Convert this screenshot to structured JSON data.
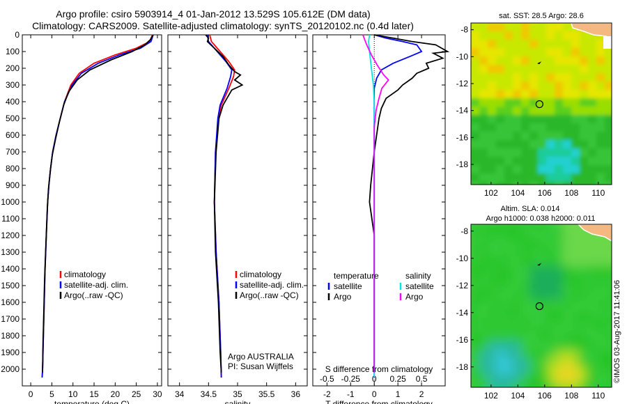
{
  "title_line1": "Argo profile: csiro 5903914_4 01-Jan-2012 13.529S 105.612E (DM data)",
  "title_line2": "Climatology: CARS2009. Satellite-adjusted climatology: synTS_20120102.nc (0.4d later)",
  "stamp": "©IMOS 03-Aug-2017 11:41:06",
  "colors": {
    "climatology": "#ff0000",
    "satellite": "#0000ff",
    "argo": "#000000",
    "sal_satellite": "#00e5e5",
    "sal_argo": "#ff00ff"
  },
  "chart_data": [
    {
      "type": "line",
      "name": "temperature",
      "xlabel": "temperature (deg C)",
      "xlim": [
        -2,
        31
      ],
      "ylim": [
        2100,
        0
      ],
      "xticks": [
        0,
        5,
        10,
        15,
        20,
        25,
        30
      ],
      "yticks": [
        0,
        100,
        200,
        300,
        400,
        500,
        600,
        700,
        800,
        900,
        1000,
        1100,
        1200,
        1300,
        1400,
        1500,
        1600,
        1700,
        1800,
        1900,
        2000
      ],
      "legend": [
        "climatology",
        "satellite-adj. clim.",
        "Argo(..raw -QC)"
      ],
      "series": [
        {
          "name": "climatology",
          "color": "#ff0000",
          "points": [
            [
              28.8,
              0
            ],
            [
              28.2,
              40
            ],
            [
              25,
              80
            ],
            [
              20,
              120
            ],
            [
              15,
              170
            ],
            [
              11.5,
              230
            ],
            [
              9.5,
              300
            ],
            [
              8,
              400
            ],
            [
              7,
              500
            ],
            [
              6,
              600
            ],
            [
              5.2,
              700
            ],
            [
              4.7,
              800
            ],
            [
              4.3,
              900
            ],
            [
              4,
              1000
            ],
            [
              3.7,
              1200
            ],
            [
              3.4,
              1400
            ],
            [
              3.2,
              1600
            ],
            [
              3,
              1800
            ],
            [
              2.8,
              2000
            ],
            [
              2.7,
              2050
            ]
          ]
        },
        {
          "name": "satellite-adj. clim.",
          "color": "#0000ff",
          "points": [
            [
              29,
              0
            ],
            [
              28.5,
              40
            ],
            [
              26,
              80
            ],
            [
              21,
              120
            ],
            [
              16,
              170
            ],
            [
              12,
              230
            ],
            [
              9.8,
              300
            ],
            [
              8,
              400
            ],
            [
              7,
              500
            ],
            [
              6,
              600
            ],
            [
              5.2,
              700
            ],
            [
              4.7,
              800
            ],
            [
              4.3,
              900
            ],
            [
              4,
              1000
            ],
            [
              3.7,
              1200
            ],
            [
              3.4,
              1400
            ],
            [
              3.2,
              1600
            ],
            [
              3,
              1800
            ],
            [
              2.8,
              2000
            ],
            [
              2.7,
              2050
            ]
          ]
        },
        {
          "name": "Argo(..raw -QC)",
          "color": "#000000",
          "points": [
            [
              29,
              0
            ],
            [
              28.3,
              30
            ],
            [
              27,
              60
            ],
            [
              24,
              100
            ],
            [
              19,
              150
            ],
            [
              14,
              210
            ],
            [
              11,
              270
            ],
            [
              9,
              340
            ],
            [
              7.8,
              420
            ],
            [
              6.8,
              520
            ],
            [
              5.9,
              620
            ],
            [
              5.1,
              720
            ],
            [
              4.6,
              820
            ],
            [
              4.2,
              920
            ],
            [
              3.9,
              1050
            ],
            [
              3.6,
              1250
            ],
            [
              3.3,
              1450
            ],
            [
              3.1,
              1650
            ],
            [
              2.9,
              1850
            ],
            [
              2.8,
              2020
            ]
          ]
        }
      ]
    },
    {
      "type": "line",
      "name": "salinity",
      "xlabel": "salinity",
      "xlim": [
        33.8,
        36.2
      ],
      "ylim": [
        2100,
        0
      ],
      "xticks": [
        34,
        34.5,
        35,
        35.5,
        36
      ],
      "legend": [
        "climatology",
        "satellite-adj. clim.",
        "Argo(..raw -QC)"
      ],
      "annotation": [
        "Argo AUSTRALIA",
        "PI: Susan Wijffels"
      ],
      "series": [
        {
          "name": "climatology",
          "color": "#ff0000",
          "points": [
            [
              34.52,
              0
            ],
            [
              34.55,
              40
            ],
            [
              34.7,
              100
            ],
            [
              34.85,
              160
            ],
            [
              34.95,
              210
            ],
            [
              34.93,
              250
            ],
            [
              34.85,
              320
            ],
            [
              34.72,
              420
            ],
            [
              34.67,
              500
            ],
            [
              34.62,
              700
            ],
            [
              34.6,
              1000
            ],
            [
              34.63,
              1300
            ],
            [
              34.68,
              1600
            ],
            [
              34.71,
              1900
            ],
            [
              34.72,
              2050
            ]
          ]
        },
        {
          "name": "satellite-adj. clim.",
          "color": "#0000ff",
          "points": [
            [
              34.48,
              0
            ],
            [
              34.5,
              40
            ],
            [
              34.65,
              100
            ],
            [
              34.8,
              160
            ],
            [
              34.9,
              210
            ],
            [
              34.88,
              250
            ],
            [
              34.82,
              320
            ],
            [
              34.7,
              420
            ],
            [
              34.66,
              500
            ],
            [
              34.62,
              700
            ],
            [
              34.6,
              1000
            ],
            [
              34.63,
              1300
            ],
            [
              34.68,
              1600
            ],
            [
              34.71,
              1900
            ],
            [
              34.72,
              2050
            ]
          ]
        },
        {
          "name": "Argo(..raw -QC)",
          "color": "#000000",
          "points": [
            [
              34.45,
              0
            ],
            [
              34.5,
              20
            ],
            [
              34.48,
              40
            ],
            [
              34.6,
              80
            ],
            [
              34.75,
              130
            ],
            [
              34.85,
              180
            ],
            [
              34.95,
              220
            ],
            [
              35.05,
              240
            ],
            [
              34.95,
              270
            ],
            [
              35.08,
              300
            ],
            [
              34.9,
              330
            ],
            [
              34.85,
              360
            ],
            [
              34.75,
              420
            ],
            [
              34.68,
              500
            ],
            [
              34.63,
              700
            ],
            [
              34.6,
              1000
            ],
            [
              34.62,
              1300
            ],
            [
              34.67,
              1600
            ],
            [
              34.7,
              1900
            ],
            [
              34.72,
              2020
            ]
          ]
        }
      ]
    },
    {
      "type": "line",
      "name": "difference",
      "xlabel": "T difference from climatology",
      "x2label": "S difference from climatology",
      "xlim": [
        -2.6,
        3.0
      ],
      "ylim": [
        2100,
        0
      ],
      "xticks": [
        -2,
        -1,
        0,
        1,
        2
      ],
      "x2ticks": [
        -0.5,
        -0.25,
        0,
        0.25,
        0.5
      ],
      "x2ticklabels": [
        "-0.5",
        "-0.25",
        "0",
        "0.25",
        "0.5"
      ],
      "x2lim": [
        -0.65,
        0.75
      ],
      "legend_left_title": "temperature",
      "legend_right_title": "salinity",
      "legend_left": [
        "satellite",
        "Argo"
      ],
      "legend_right": [
        "satellite",
        "Argo"
      ],
      "series": [
        {
          "name": "T satellite",
          "axis": "T",
          "color": "#0000ff",
          "points": [
            [
              0,
              0
            ],
            [
              0.5,
              20
            ],
            [
              1.2,
              40
            ],
            [
              1.8,
              60
            ],
            [
              2,
              100
            ],
            [
              1.5,
              130
            ],
            [
              0.8,
              170
            ],
            [
              0.3,
              210
            ],
            [
              0.1,
              260
            ],
            [
              0,
              320
            ],
            [
              0,
              400
            ],
            [
              0,
              600
            ],
            [
              0,
              1000
            ],
            [
              0,
              1500
            ],
            [
              0,
              2050
            ]
          ]
        },
        {
          "name": "T Argo",
          "axis": "T",
          "color": "#000000",
          "points": [
            [
              0,
              0
            ],
            [
              0.8,
              20
            ],
            [
              1.6,
              40
            ],
            [
              2.6,
              60
            ],
            [
              3.1,
              100
            ],
            [
              2.5,
              110
            ],
            [
              2.9,
              140
            ],
            [
              2.2,
              170
            ],
            [
              2.3,
              200
            ],
            [
              1.8,
              230
            ],
            [
              1.6,
              260
            ],
            [
              1.2,
              300
            ],
            [
              1,
              330
            ],
            [
              0.5,
              380
            ],
            [
              0.3,
              440
            ],
            [
              0.2,
              500
            ],
            [
              0.1,
              600
            ],
            [
              0,
              700
            ],
            [
              -0.15,
              900
            ],
            [
              -0.2,
              1000
            ],
            [
              -0.15,
              1050
            ],
            [
              0,
              1200
            ],
            [
              0,
              1500
            ],
            [
              0,
              2020
            ]
          ]
        },
        {
          "name": "S satellite",
          "axis": "S",
          "color": "#00e5e5",
          "points": [
            [
              -0.05,
              0
            ],
            [
              -0.06,
              40
            ],
            [
              -0.05,
              100
            ],
            [
              -0.03,
              200
            ],
            [
              -0.01,
              300
            ],
            [
              0,
              400
            ],
            [
              0,
              700
            ],
            [
              0,
              1000
            ],
            [
              0,
              1500
            ],
            [
              0,
              2050
            ]
          ]
        },
        {
          "name": "S Argo",
          "axis": "S",
          "color": "#ff00ff",
          "points": [
            [
              -0.12,
              0
            ],
            [
              -0.1,
              30
            ],
            [
              -0.08,
              60
            ],
            [
              -0.03,
              120
            ],
            [
              0.03,
              180
            ],
            [
              0.1,
              240
            ],
            [
              0.15,
              270
            ],
            [
              0.08,
              320
            ],
            [
              0.05,
              380
            ],
            [
              0.02,
              450
            ],
            [
              0,
              550
            ],
            [
              0,
              800
            ],
            [
              0,
              1200
            ],
            [
              0,
              2020
            ]
          ]
        }
      ]
    },
    {
      "type": "heatmap",
      "name": "sst-map",
      "title": "sat. SST: 28.5  Argo: 28.6",
      "xlim": [
        100.5,
        111
      ],
      "ylim": [
        -19.5,
        -7.5
      ],
      "xticks": [
        102,
        104,
        106,
        108,
        110
      ],
      "yticks": [
        -8,
        -10,
        -12,
        -14,
        -16,
        -18
      ],
      "argo_position": [
        105.612,
        -13.529
      ],
      "previous_position": [
        105.6,
        -10.4
      ]
    },
    {
      "type": "heatmap",
      "name": "sla-map",
      "title": "Altim. SLA: 0.014",
      "subtitle": "Argo h1000: 0.038  h2000: 0.011",
      "xlim": [
        100.5,
        111
      ],
      "ylim": [
        -19.5,
        -7.5
      ],
      "xticks": [
        102,
        104,
        106,
        108,
        110
      ],
      "yticks": [
        -8,
        -10,
        -12,
        -14,
        -16,
        -18
      ],
      "argo_position": [
        105.612,
        -13.529
      ],
      "previous_position": [
        105.6,
        -10.4
      ]
    }
  ]
}
